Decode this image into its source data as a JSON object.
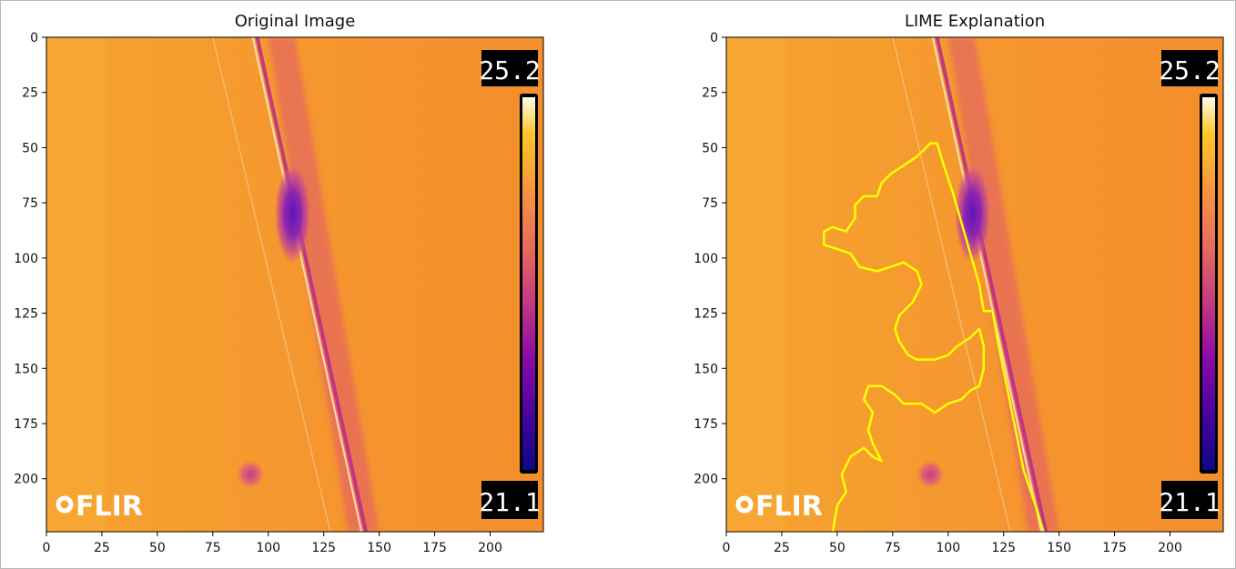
{
  "chart_data": [
    {
      "type": "heatmap",
      "title": "Original Image",
      "x_ticks": [
        0,
        25,
        50,
        75,
        100,
        125,
        150,
        175,
        200
      ],
      "y_ticks": [
        0,
        25,
        50,
        75,
        100,
        125,
        150,
        175,
        200
      ],
      "xlim": [
        0,
        224
      ],
      "ylim": [
        224,
        0
      ],
      "colormap": "plasma",
      "overlay": {
        "temp_max": "25.2",
        "temp_min": "21.1",
        "logo": "FLIR"
      }
    },
    {
      "type": "heatmap",
      "title": "LIME Explanation",
      "x_ticks": [
        0,
        25,
        50,
        75,
        100,
        125,
        150,
        175,
        200
      ],
      "y_ticks": [
        0,
        25,
        50,
        75,
        100,
        125,
        150,
        175,
        200
      ],
      "xlim": [
        0,
        224
      ],
      "ylim": [
        224,
        0
      ],
      "colormap": "plasma",
      "overlay": {
        "temp_max": "25.2",
        "temp_min": "21.1",
        "logo": "FLIR"
      },
      "boundary_color": "#ffff00",
      "boundary": [
        [
          48,
          224
        ],
        [
          50,
          212
        ],
        [
          54,
          206
        ],
        [
          52,
          198
        ],
        [
          56,
          190
        ],
        [
          62,
          186
        ],
        [
          66,
          190
        ],
        [
          70,
          192
        ],
        [
          66,
          184
        ],
        [
          64,
          178
        ],
        [
          66,
          170
        ],
        [
          62,
          164
        ],
        [
          64,
          158
        ],
        [
          70,
          158
        ],
        [
          76,
          162
        ],
        [
          80,
          166
        ],
        [
          88,
          166
        ],
        [
          94,
          170
        ],
        [
          100,
          166
        ],
        [
          106,
          164
        ],
        [
          110,
          160
        ],
        [
          114,
          158
        ],
        [
          116,
          150
        ],
        [
          116,
          140
        ],
        [
          114,
          132
        ],
        [
          110,
          136
        ],
        [
          104,
          140
        ],
        [
          100,
          144
        ],
        [
          94,
          146
        ],
        [
          86,
          146
        ],
        [
          82,
          144
        ],
        [
          78,
          138
        ],
        [
          76,
          132
        ],
        [
          78,
          126
        ],
        [
          84,
          120
        ],
        [
          88,
          112
        ],
        [
          86,
          106
        ],
        [
          80,
          102
        ],
        [
          74,
          104
        ],
        [
          68,
          106
        ],
        [
          60,
          104
        ],
        [
          56,
          98
        ],
        [
          50,
          96
        ],
        [
          44,
          94
        ],
        [
          44,
          88
        ],
        [
          48,
          86
        ],
        [
          54,
          88
        ],
        [
          58,
          82
        ],
        [
          58,
          76
        ],
        [
          62,
          72
        ],
        [
          68,
          72
        ],
        [
          70,
          66
        ],
        [
          74,
          62
        ],
        [
          80,
          58
        ],
        [
          86,
          54
        ],
        [
          92,
          48
        ],
        [
          95,
          48
        ],
        [
          98,
          58
        ],
        [
          102,
          70
        ],
        [
          106,
          84
        ],
        [
          110,
          98
        ],
        [
          114,
          112
        ],
        [
          116,
          124
        ],
        [
          120,
          124
        ],
        [
          122,
          136
        ],
        [
          126,
          156
        ],
        [
          130,
          176
        ],
        [
          134,
          196
        ],
        [
          140,
          214
        ],
        [
          143,
          224
        ]
      ]
    }
  ]
}
